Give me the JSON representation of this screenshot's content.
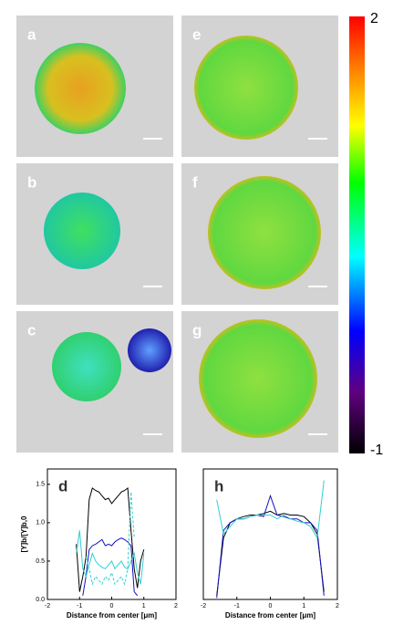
{
  "panels": [
    {
      "label": "a"
    },
    {
      "label": "b"
    },
    {
      "label": "c"
    },
    {
      "label": "e"
    },
    {
      "label": "f"
    },
    {
      "label": "g"
    }
  ],
  "colorbar": {
    "lim": [
      -1,
      2
    ],
    "ticks": [
      2,
      -1
    ]
  },
  "chart_data": [
    {
      "type": "line",
      "label": "d",
      "xlabel": "Distance from center [μm]",
      "ylabel": "[Y]b/[Y]b,0",
      "xlim": [
        -2,
        2
      ],
      "ylim": [
        0,
        1.7
      ],
      "xticks": [
        -2,
        -1,
        0,
        1,
        2
      ],
      "yticks": [
        {
          "value": 0,
          "label": "0.0"
        },
        {
          "value": 0.5,
          "label": "0.5"
        },
        {
          "value": 1,
          "label": "1.0"
        },
        {
          "value": 1.5,
          "label": "1.5"
        }
      ],
      "x": [
        -1.1,
        -1.0,
        -0.9,
        -0.8,
        -0.7,
        -0.6,
        -0.5,
        -0.4,
        -0.3,
        -0.2,
        -0.1,
        0,
        0.1,
        0.2,
        0.3,
        0.4,
        0.5,
        0.6,
        0.7,
        0.8,
        0.9,
        1.0
      ],
      "series": [
        {
          "color": "#000000",
          "dash": false,
          "values": [
            0.72,
            0.1,
            0.3,
            0.55,
            1.3,
            1.45,
            1.42,
            1.4,
            1.35,
            1.3,
            1.32,
            1.25,
            1.3,
            1.35,
            1.4,
            1.42,
            1.45,
            0.9,
            0.4,
            0.15,
            0.5,
            0.65
          ]
        },
        {
          "color": "#1010c0",
          "dash": false,
          "values": [
            null,
            null,
            0.05,
            0.3,
            0.65,
            0.7,
            0.72,
            0.75,
            0.78,
            0.7,
            0.72,
            0.7,
            0.75,
            0.78,
            0.8,
            0.78,
            0.75,
            0.7,
            0.1,
            0.05,
            null,
            null
          ]
        },
        {
          "color": "#30d0d0",
          "dash": false,
          "values": [
            0.6,
            0.9,
            0.4,
            0.3,
            0.45,
            0.6,
            0.5,
            0.45,
            0.42,
            0.4,
            0.45,
            0.5,
            0.4,
            0.45,
            0.5,
            0.42,
            0.4,
            0.5,
            0.6,
            0.35,
            0.2,
            0.6
          ]
        },
        {
          "color": "#30d0d0",
          "dash": true,
          "values": [
            null,
            null,
            null,
            0.55,
            0.4,
            0.2,
            0.3,
            0.25,
            0.2,
            0.3,
            0.25,
            0.35,
            0.2,
            0.25,
            0.3,
            0.2,
            0.4,
            1.4,
            0.8,
            null,
            null,
            null
          ]
        }
      ]
    },
    {
      "type": "line",
      "label": "h",
      "xlabel": "Distance from center [μm]",
      "xlim": [
        -2,
        2
      ],
      "ylim": [
        0,
        1.7
      ],
      "xticks": [
        -2,
        -1,
        0,
        1,
        2
      ],
      "x": [
        -1.6,
        -1.4,
        -1.2,
        -1.0,
        -0.8,
        -0.6,
        -0.4,
        -0.2,
        0,
        0.2,
        0.4,
        0.6,
        0.8,
        1.0,
        1.2,
        1.4,
        1.6
      ],
      "series": [
        {
          "color": "#000000",
          "dash": false,
          "values": [
            0.05,
            0.8,
            1.0,
            1.05,
            1.08,
            1.1,
            1.1,
            1.12,
            1.15,
            1.1,
            1.12,
            1.1,
            1.1,
            1.08,
            1.0,
            0.85,
            0.1
          ]
        },
        {
          "color": "#1010c0",
          "dash": false,
          "values": [
            0.02,
            0.9,
            1.0,
            1.05,
            1.05,
            1.08,
            1.1,
            1.08,
            1.35,
            1.1,
            1.08,
            1.05,
            1.05,
            1.0,
            1.0,
            0.9,
            0.05
          ]
        },
        {
          "color": "#30d0d0",
          "dash": false,
          "values": [
            1.3,
            0.85,
            0.95,
            1.05,
            1.05,
            1.08,
            1.1,
            1.1,
            1.1,
            1.05,
            1.1,
            1.05,
            1.02,
            1.0,
            0.95,
            0.8,
            1.55
          ]
        }
      ]
    }
  ]
}
